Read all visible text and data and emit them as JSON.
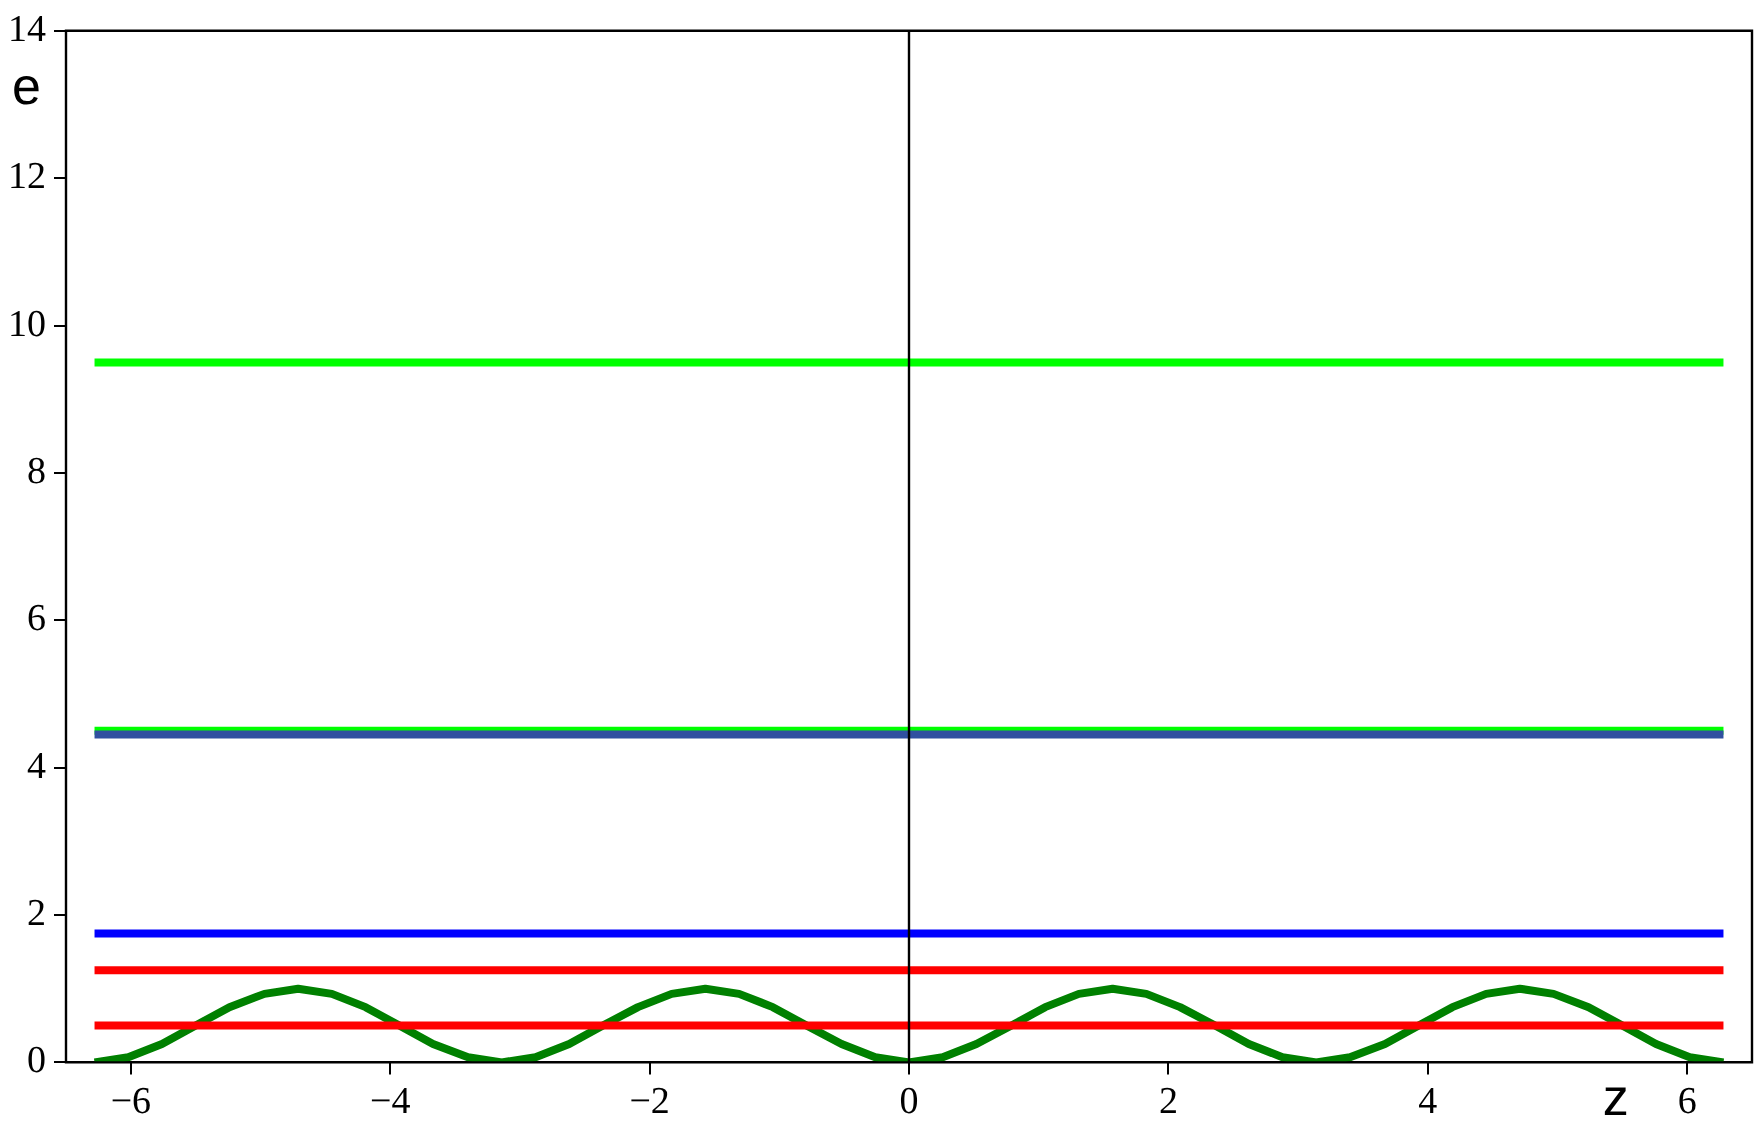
{
  "chart_data": {
    "type": "line",
    "xlabel": "z",
    "ylabel": "e",
    "xlim": [
      -6.5,
      6.5
    ],
    "ylim": [
      0,
      14
    ],
    "xticks": [
      {
        "value": -6,
        "label": "−6"
      },
      {
        "value": -4,
        "label": "−4"
      },
      {
        "value": -2,
        "label": "−2"
      },
      0,
      2,
      4,
      6
    ],
    "yticks": [
      0,
      2,
      4,
      6,
      8,
      10,
      12,
      14
    ],
    "grid": false,
    "legend": false,
    "marker": "none",
    "line_style": "solid",
    "ref_lines": [
      {
        "axis": "x",
        "value": 0,
        "color": "#000000"
      }
    ],
    "series": [
      {
        "color": "#00ff00",
        "x": [
          -6.28,
          6.28
        ],
        "values": [
          9.5,
          9.5
        ]
      },
      {
        "color": "#3050a0",
        "x": [
          -6.28,
          6.28
        ],
        "values": [
          4.45,
          4.45
        ]
      },
      {
        "color": "#00ff00",
        "x": [
          -6.28,
          6.28
        ],
        "values": [
          4.5,
          4.5
        ]
      },
      {
        "color": "#0000ff",
        "x": [
          -6.28,
          6.28
        ],
        "values": [
          1.75,
          1.75
        ]
      },
      {
        "color": "#ff0000",
        "x": [
          -6.28,
          6.28
        ],
        "values": [
          1.25,
          1.25
        ]
      },
      {
        "color": "#ff0000",
        "x": [
          -6.28,
          6.28
        ],
        "values": [
          0.5,
          0.5
        ]
      },
      {
        "color": "#008000",
        "x": [
          -6.28,
          -6.02,
          -5.76,
          -5.5,
          -5.24,
          -4.97,
          -4.71,
          -4.45,
          -4.19,
          -3.93,
          -3.67,
          -3.4,
          -3.14,
          -2.88,
          -2.62,
          -2.36,
          -2.09,
          -1.83,
          -1.57,
          -1.31,
          -1.05,
          -0.79,
          -0.52,
          -0.26,
          0,
          0.26,
          0.52,
          0.79,
          1.05,
          1.31,
          1.57,
          1.83,
          2.09,
          2.36,
          2.62,
          2.88,
          3.14,
          3.4,
          3.67,
          3.93,
          4.19,
          4.45,
          4.71,
          4.97,
          5.24,
          5.5,
          5.76,
          6.02,
          6.28
        ],
        "values": [
          0,
          0.07,
          0.25,
          0.5,
          0.75,
          0.93,
          1,
          0.93,
          0.75,
          0.5,
          0.25,
          0.07,
          0,
          0.07,
          0.25,
          0.5,
          0.75,
          0.93,
          1,
          0.93,
          0.75,
          0.5,
          0.25,
          0.07,
          0,
          0.07,
          0.25,
          0.5,
          0.75,
          0.93,
          1,
          0.93,
          0.75,
          0.5,
          0.25,
          0.07,
          0,
          0.07,
          0.25,
          0.5,
          0.75,
          0.93,
          1,
          0.93,
          0.75,
          0.5,
          0.25,
          0.07,
          0
        ]
      }
    ]
  }
}
